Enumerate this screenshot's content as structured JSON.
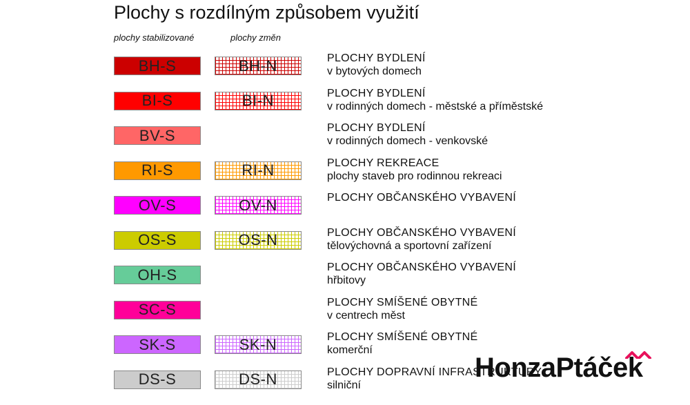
{
  "title": "Plochy s rozdílným způsobem využití",
  "columns": {
    "stabilized": "plochy stabilizované",
    "changes": "plochy změn"
  },
  "rows": [
    {
      "s": "BH-S",
      "n": "BH-N",
      "main": "PLOCHY BYDLENÍ",
      "sub": "v bytových domech",
      "color": "#cc0000"
    },
    {
      "s": "BI-S",
      "n": "BI-N",
      "main": "PLOCHY BYDLENÍ",
      "sub": "v rodinných domech - městské a příměstské",
      "color": "#ff0000"
    },
    {
      "s": "BV-S",
      "n": "",
      "main": "PLOCHY BYDLENÍ",
      "sub": "v rodinných domech - venkovské",
      "color": "#ff6666"
    },
    {
      "s": "RI-S",
      "n": "RI-N",
      "main": "PLOCHY REKREACE",
      "sub": "plochy staveb pro rodinnou rekreaci",
      "color": "#ff9900"
    },
    {
      "s": "OV-S",
      "n": "OV-N",
      "main": "PLOCHY OBČANSKÉHO VYBAVENÍ",
      "sub": "",
      "color": "#ff00ff"
    },
    {
      "s": "OS-S",
      "n": "OS-N",
      "main": "PLOCHY OBČANSKÉHO VYBAVENÍ",
      "sub": "tělovýchovná a sportovní zařízení",
      "color": "#cccc00"
    },
    {
      "s": "OH-S",
      "n": "",
      "main": "PLOCHY OBČANSKÉHO VYBAVENÍ",
      "sub": "hřbitovy",
      "color": "#66cc99"
    },
    {
      "s": "SC-S",
      "n": "",
      "main": "PLOCHY SMÍŠENÉ OBYTNÉ",
      "sub": "v centrech měst",
      "color": "#ff0099"
    },
    {
      "s": "SK-S",
      "n": "SK-N",
      "main": "PLOCHY SMÍŠENÉ OBYTNÉ",
      "sub": "komerční",
      "color": "#cc66ff"
    },
    {
      "s": "DS-S",
      "n": "DS-N",
      "main": "PLOCHY DOPRAVNÍ INFRASTRUKTURY",
      "sub": "silniční",
      "color": "#cccccc"
    }
  ],
  "logo": {
    "part1": "Honza",
    "part2": "Ptáček",
    "accent": "#e8115b"
  }
}
